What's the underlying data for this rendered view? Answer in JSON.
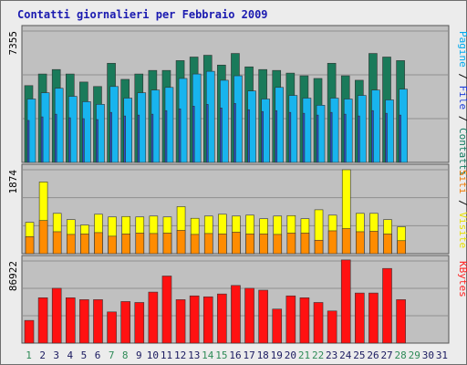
{
  "chart_data": {
    "type": "bar",
    "title": "Contatti giornalieri per Febbraio 2009",
    "categories": [
      "1",
      "2",
      "3",
      "4",
      "5",
      "6",
      "7",
      "8",
      "9",
      "10",
      "11",
      "12",
      "13",
      "14",
      "15",
      "16",
      "17",
      "18",
      "19",
      "20",
      "21",
      "22",
      "23",
      "24",
      "25",
      "26",
      "27",
      "28",
      "29",
      "30",
      "31"
    ],
    "weekend_days": [
      "1",
      "7",
      "8",
      "14",
      "15",
      "21",
      "22",
      "28",
      "29"
    ],
    "panels": [
      {
        "max_label": "7355",
        "ylim": [
          0,
          7355
        ],
        "side_label_parts": [
          {
            "text": "Pagine",
            "color": "#00aaee"
          },
          {
            "text": " / ",
            "color": "#000000"
          },
          {
            "text": "File",
            "color": "#1e3dd8"
          },
          {
            "text": " / ",
            "color": "#000000"
          },
          {
            "text": "Contatti",
            "color": "#117a60"
          }
        ],
        "series": [
          {
            "name": "Contatti",
            "color": "#1a7a5a",
            "values": [
              4300,
              4950,
              5200,
              4950,
              4500,
              4250,
              5550,
              4650,
              4950,
              5150,
              5150,
              5700,
              5900,
              6000,
              5450,
              6100,
              5350,
              5200,
              5150,
              5000,
              4850,
              4700,
              5550,
              4850,
              4600,
              6100,
              5900,
              5700
            ]
          },
          {
            "name": "Pagine",
            "color": "#18b4ee",
            "values": [
              3550,
              3900,
              4150,
              3700,
              3400,
              3250,
              4250,
              3600,
              3900,
              4050,
              4200,
              4700,
              4950,
              5100,
              4600,
              4850,
              4000,
              3550,
              4200,
              3750,
              3600,
              3200,
              3600,
              3550,
              3750,
              4050,
              3500,
              4100
            ]
          },
          {
            "name": "File",
            "color": "#2850c8",
            "values": [
              2350,
              2550,
              2700,
              2500,
              2450,
              2400,
              2800,
              2600,
              2650,
              2700,
              2900,
              3000,
              3150,
              3250,
              3050,
              3300,
              2950,
              2850,
              2900,
              2800,
              2750,
              2650,
              2800,
              2700,
              2600,
              2900,
              2750,
              2650
            ]
          }
        ]
      },
      {
        "max_label": "1874",
        "ylim": [
          0,
          1874
        ],
        "side_label_parts": [
          {
            "text": "Siti",
            "color": "#f07800"
          },
          {
            "text": " / ",
            "color": "#000000"
          },
          {
            "text": "Visite",
            "color": "#e8e000"
          }
        ],
        "series": [
          {
            "name": "Visite",
            "color": "#ffff00",
            "values": [
              700,
              1600,
              900,
              760,
              640,
              880,
              820,
              830,
              820,
              840,
              820,
              1050,
              790,
              840,
              880,
              840,
              860,
              780,
              840,
              850,
              780,
              980,
              860,
              1874,
              900,
              900,
              760,
              600
            ]
          },
          {
            "name": "Siti",
            "color": "#ff8c00",
            "values": [
              380,
              740,
              490,
              430,
              440,
              470,
              390,
              440,
              460,
              450,
              460,
              520,
              430,
              450,
              440,
              480,
              440,
              440,
              430,
              460,
              460,
              300,
              510,
              560,
              490,
              500,
              440,
              290
            ]
          }
        ]
      },
      {
        "max_label": "86922",
        "ylim": [
          0,
          86922
        ],
        "side_label_parts": [
          {
            "text": "KBytes",
            "color": "#ff2020"
          }
        ],
        "series": [
          {
            "name": "KBytes",
            "color": "#ff1111",
            "values": [
              24000,
              48000,
              58000,
              48000,
              46000,
              46000,
              33000,
              44000,
              43000,
              54000,
              71000,
              46000,
              50000,
              49000,
              52000,
              61000,
              58000,
              56000,
              36000,
              50000,
              48000,
              43000,
              34000,
              88000,
              53000,
              53000,
              79000,
              46000
            ]
          }
        ]
      }
    ]
  }
}
